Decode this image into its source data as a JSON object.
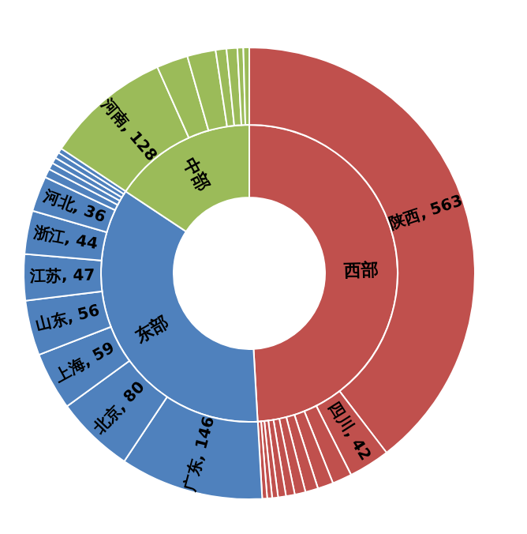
{
  "chart_data": [
    {
      "type": "donut",
      "categories": [
        "西部",
        "东部",
        "中部"
      ],
      "values": [
        49.1,
        35.2,
        15.7
      ],
      "colors": [
        "#c0504d",
        "#4f81bd",
        "#9bbb59"
      ]
    },
    {
      "type": "donut",
      "categories": [
        "陕西",
        "四川",
        null,
        null,
        null,
        null,
        null,
        null,
        null,
        null,
        null,
        "广东",
        "北京",
        "上海",
        "山东",
        "江苏",
        "浙江",
        "河北",
        null,
        null,
        null,
        null,
        null,
        "河南",
        null,
        null,
        null,
        null,
        null,
        null
      ],
      "values": [
        563,
        42,
        20,
        16,
        13,
        11,
        9,
        8,
        6,
        5,
        5,
        146,
        80,
        59,
        56,
        47,
        44,
        36,
        9,
        7,
        6,
        6,
        5,
        128,
        32,
        29,
        11,
        11,
        6,
        6
      ],
      "value_labels": [
        "563",
        "42",
        null,
        null,
        null,
        null,
        null,
        null,
        null,
        null,
        null,
        "146",
        "80",
        "59",
        "56",
        "47",
        "44",
        "36",
        null,
        null,
        null,
        null,
        null,
        "128",
        null,
        null,
        null,
        null,
        null,
        null
      ],
      "colors": [
        "#c0504d",
        "#c0504d",
        "#c0504d",
        "#c0504d",
        "#c0504d",
        "#c0504d",
        "#c0504d",
        "#c0504d",
        "#c0504d",
        "#c0504d",
        "#c0504d",
        "#4f81bd",
        "#4f81bd",
        "#4f81bd",
        "#4f81bd",
        "#4f81bd",
        "#4f81bd",
        "#4f81bd",
        "#4f81bd",
        "#4f81bd",
        "#4f81bd",
        "#4f81bd",
        "#4f81bd",
        "#9bbb59",
        "#9bbb59",
        "#9bbb59",
        "#9bbb59",
        "#9bbb59",
        "#9bbb59",
        "#9bbb59"
      ]
    }
  ]
}
